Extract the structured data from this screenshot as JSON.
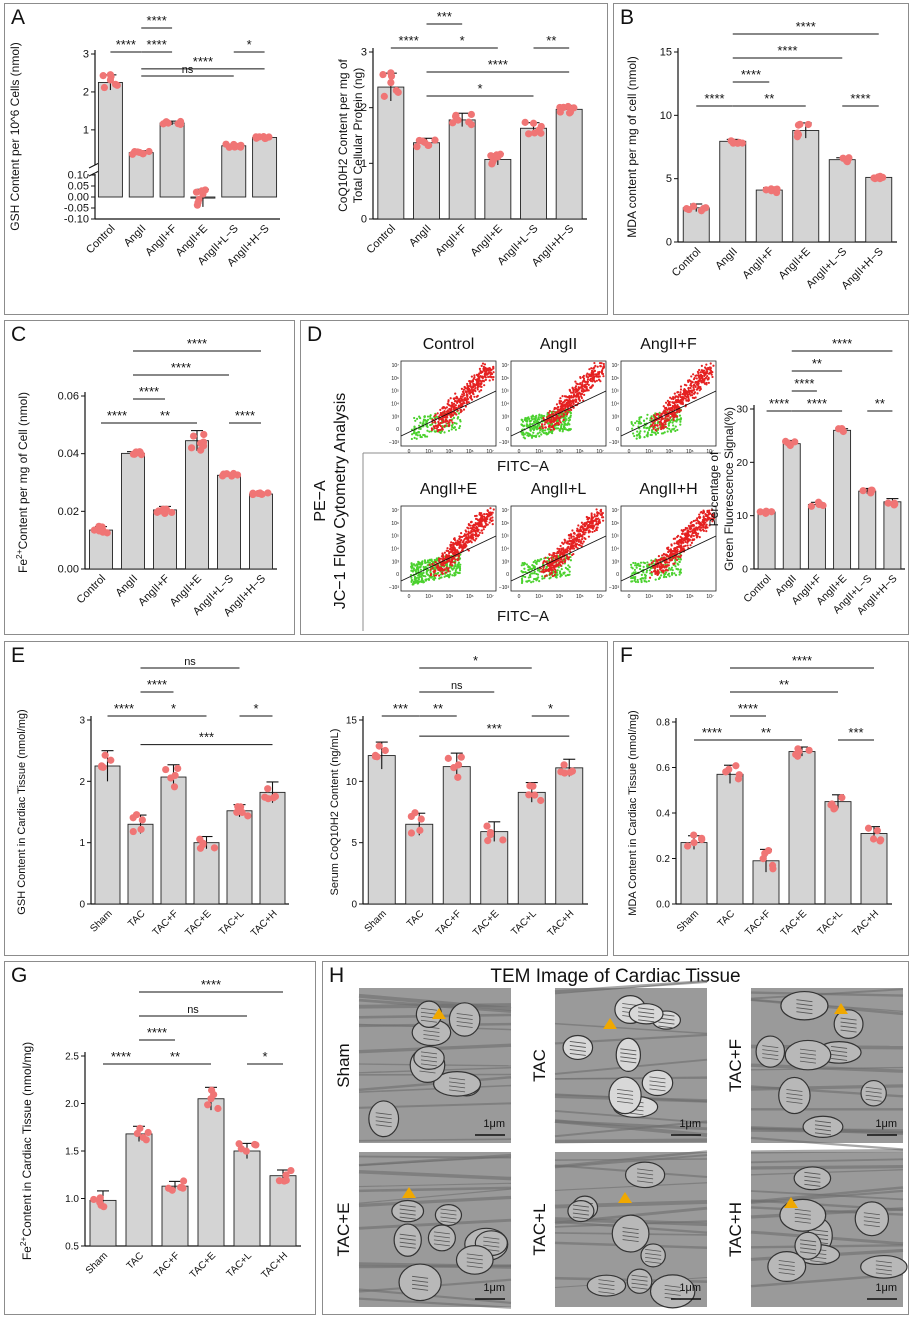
{
  "panel_labels": {
    "A": "A",
    "B": "B",
    "C": "C",
    "D": "D",
    "E": "E",
    "F": "F",
    "G": "G",
    "H": "H"
  },
  "colors": {
    "bar": "#d4d4d4",
    "dot": "#f07575",
    "red_cells": "#e52121",
    "green_cells": "#4bd12e",
    "border": "#8c8c8c"
  },
  "chart_data": [
    {
      "id": "A1",
      "type": "bar",
      "ylabel": "GSH Content per 10^6 Cells (nmol)",
      "categories": [
        "Control",
        "AngII",
        "AngII+F",
        "AngII+E",
        "AngII+L−S",
        "AngII+H−S"
      ],
      "values": [
        2.25,
        0.4,
        1.18,
        -0.005,
        0.58,
        0.8
      ],
      "errors": [
        0.2,
        0.05,
        0.05,
        0.04,
        0.04,
        0.03
      ],
      "axis_break": {
        "lower": [
          -0.1,
          0.1
        ],
        "upper": [
          0.1,
          3
        ]
      },
      "yticks_lower": [
        "-0.10",
        "-0.05",
        "0.00",
        "0.05",
        "0.10"
      ],
      "yticks_upper": [
        "1",
        "2",
        "3"
      ],
      "significance": [
        {
          "from": 0,
          "to": 1,
          "level": 1,
          "label": "****"
        },
        {
          "from": 1,
          "to": 2,
          "level": 2,
          "label": "****"
        },
        {
          "from": 1,
          "to": 2,
          "level": 1,
          "label": "****"
        },
        {
          "from": 1,
          "to": 4,
          "level": 0,
          "label": "ns"
        },
        {
          "from": 1,
          "to": 5,
          "level": -1,
          "label": "****"
        },
        {
          "from": 4,
          "to": 5,
          "level": 1,
          "label": "*"
        }
      ]
    },
    {
      "id": "A2",
      "type": "bar",
      "ylabel": "CoQ10H2 Content per mg of Total Cellular Protein (ng)",
      "ylabel_lines": [
        "CoQ10H2 Content per mg of",
        "Total Cellular Protein (ng)"
      ],
      "categories": [
        "Control",
        "AngII",
        "AngII+F",
        "AngII+E",
        "AngII+L−S",
        "AngII+H−S"
      ],
      "values": [
        2.37,
        1.37,
        1.78,
        1.07,
        1.63,
        1.97
      ],
      "errors": [
        0.25,
        0.08,
        0.12,
        0.1,
        0.1,
        0.07
      ],
      "ylim": [
        0,
        3
      ],
      "yticks": [
        "0",
        "1",
        "2",
        "3"
      ],
      "significance": [
        {
          "from": 0,
          "to": 1,
          "level": 4,
          "label": "****"
        },
        {
          "from": 1,
          "to": 2,
          "level": 5,
          "label": "***"
        },
        {
          "from": 1,
          "to": 3,
          "level": 4,
          "label": "*"
        },
        {
          "from": 1,
          "to": 5,
          "level": 3,
          "label": "****"
        },
        {
          "from": 1,
          "to": 4,
          "level": 2,
          "label": "*"
        },
        {
          "from": 4,
          "to": 5,
          "level": 4,
          "label": "**"
        }
      ]
    },
    {
      "id": "B",
      "type": "bar",
      "ylabel": "MDA content per mg of cell (nmol)",
      "categories": [
        "Control",
        "AngII",
        "AngII+F",
        "AngII+E",
        "AngII+L−S",
        "AngII+H−S"
      ],
      "values": [
        2.7,
        7.95,
        4.1,
        8.8,
        6.5,
        5.1
      ],
      "errors": [
        0.3,
        0.15,
        0.2,
        0.6,
        0.15,
        0.1
      ],
      "ylim": [
        0,
        15
      ],
      "yticks": [
        "0",
        "5",
        "10",
        "15"
      ],
      "significance": [
        {
          "from": 0,
          "to": 1,
          "level": 0,
          "label": "****"
        },
        {
          "from": 1,
          "to": 2,
          "level": 1,
          "label": "****"
        },
        {
          "from": 1,
          "to": 3,
          "level": 0,
          "label": "**"
        },
        {
          "from": 1,
          "to": 4,
          "level": 2,
          "label": "****"
        },
        {
          "from": 1,
          "to": 5,
          "level": 3,
          "label": "****"
        },
        {
          "from": 4,
          "to": 5,
          "level": 0,
          "label": "****"
        }
      ]
    },
    {
      "id": "C",
      "type": "bar",
      "ylabel": "Fe²⁺Content per mg of Cell (nmol)",
      "ylabel_main": "Content per mg of Cell (nmol)",
      "ylabel_fe": "Fe",
      "ylabel_sup": "2+",
      "categories": [
        "Control",
        "AngII",
        "AngII+F",
        "AngII+E",
        "AngII+L−S",
        "AngII+H−S"
      ],
      "values": [
        0.0135,
        0.0401,
        0.0205,
        0.0445,
        0.0325,
        0.026
      ],
      "errors": [
        0.0012,
        0.0006,
        0.0012,
        0.0035,
        0.0006,
        0.0004
      ],
      "ylim": [
        0,
        0.06
      ],
      "yticks": [
        "0.00",
        "0.02",
        "0.04",
        "0.06"
      ],
      "significance": [
        {
          "from": 0,
          "to": 1,
          "level": 0,
          "label": "****"
        },
        {
          "from": 1,
          "to": 2,
          "level": 1,
          "label": "****"
        },
        {
          "from": 1,
          "to": 3,
          "level": 0,
          "label": "**"
        },
        {
          "from": 1,
          "to": 4,
          "level": 2,
          "label": "****"
        },
        {
          "from": 1,
          "to": 5,
          "level": 3,
          "label": "****"
        },
        {
          "from": 4,
          "to": 5,
          "level": 0,
          "label": "****"
        }
      ]
    },
    {
      "id": "D",
      "type": "bar",
      "ylabel": "Percentage of Green Fluorescence Signal(%)",
      "ylabel_lines": [
        "Percentage of",
        "Green Fluorescence Signal(%)"
      ],
      "categories": [
        "Control",
        "AngII",
        "AngII+F",
        "AngII+E",
        "AngII+L−S",
        "AngII+H−S"
      ],
      "values": [
        10.7,
        23.5,
        12.1,
        26.0,
        14.6,
        12.6
      ],
      "errors": [
        0.3,
        0.6,
        0.4,
        0.3,
        0.5,
        0.6
      ],
      "ylim": [
        0,
        30
      ],
      "yticks": [
        "0",
        "10",
        "20",
        "30"
      ],
      "significance": [
        {
          "from": 0,
          "to": 1,
          "level": 0,
          "label": "****"
        },
        {
          "from": 1,
          "to": 2,
          "level": 1,
          "label": "****"
        },
        {
          "from": 1,
          "to": 3,
          "level": 0,
          "label": "****"
        },
        {
          "from": 1,
          "to": 3,
          "level": 2,
          "label": "**"
        },
        {
          "from": 1,
          "to": 5,
          "level": 3,
          "label": "****"
        },
        {
          "from": 4,
          "to": 5,
          "level": 0,
          "label": "**"
        }
      ]
    },
    {
      "id": "E1",
      "type": "bar",
      "ylabel": "GSH Content in Cardiac Tissue (nmol/mg)",
      "categories": [
        "Sham",
        "TAC",
        "TAC+F",
        "TAC+E",
        "TAC+L",
        "TAC+H"
      ],
      "values": [
        2.25,
        1.3,
        2.07,
        1.0,
        1.52,
        1.82
      ],
      "errors": [
        0.25,
        0.15,
        0.2,
        0.1,
        0.1,
        0.17
      ],
      "ylim": [
        0,
        3
      ],
      "yticks": [
        "0",
        "1",
        "2",
        "3"
      ],
      "significance": [
        {
          "from": 0,
          "to": 1,
          "level": 0,
          "label": "****"
        },
        {
          "from": 1,
          "to": 2,
          "level": 1,
          "label": "****"
        },
        {
          "from": 1,
          "to": 3,
          "level": 0,
          "label": "*"
        },
        {
          "from": 1,
          "to": 4,
          "level": 2,
          "label": "ns"
        },
        {
          "from": 1,
          "to": 5,
          "level": -1,
          "label": "***"
        },
        {
          "from": 4,
          "to": 5,
          "level": 0,
          "label": "*"
        }
      ]
    },
    {
      "id": "E2",
      "type": "bar",
      "ylabel": "Serum CoQ10H2 Content (ng/mL)",
      "categories": [
        "Sham",
        "TAC",
        "TAC+F",
        "TAC+E",
        "TAC+L",
        "TAC+H"
      ],
      "values": [
        12.1,
        6.5,
        11.2,
        5.9,
        9.1,
        11.1
      ],
      "errors": [
        1.1,
        0.9,
        1.1,
        0.8,
        0.8,
        0.7
      ],
      "ylim": [
        0,
        15
      ],
      "yticks": [
        "0",
        "5",
        "10",
        "15"
      ],
      "significance": [
        {
          "from": 0,
          "to": 1,
          "level": 0,
          "label": "***"
        },
        {
          "from": 1,
          "to": 2,
          "level": 0,
          "label": "**"
        },
        {
          "from": 1,
          "to": 3,
          "level": 1,
          "label": "ns"
        },
        {
          "from": 1,
          "to": 4,
          "level": 2,
          "label": "*"
        },
        {
          "from": 1,
          "to": 5,
          "level": -1,
          "label": "***"
        },
        {
          "from": 4,
          "to": 5,
          "level": 0,
          "label": "*"
        }
      ]
    },
    {
      "id": "F",
      "type": "bar",
      "ylabel": "MDA Content in Cardiac Tissue (nmol/mg)",
      "categories": [
        "Sham",
        "TAC",
        "TAC+F",
        "TAC+E",
        "TAC+L",
        "TAC+H"
      ],
      "values": [
        0.27,
        0.57,
        0.19,
        0.67,
        0.45,
        0.31
      ],
      "errors": [
        0.03,
        0.04,
        0.05,
        0.02,
        0.03,
        0.03
      ],
      "ylim": [
        0,
        0.8
      ],
      "yticks": [
        "0.0",
        "0.2",
        "0.4",
        "0.6",
        "0.8"
      ],
      "significance": [
        {
          "from": 0,
          "to": 1,
          "level": 0,
          "label": "****"
        },
        {
          "from": 1,
          "to": 2,
          "level": 1,
          "label": "****"
        },
        {
          "from": 1,
          "to": 3,
          "level": 0,
          "label": "**"
        },
        {
          "from": 1,
          "to": 4,
          "level": 2,
          "label": "**"
        },
        {
          "from": 1,
          "to": 5,
          "level": 3,
          "label": "****"
        },
        {
          "from": 4,
          "to": 5,
          "level": 0,
          "label": "***"
        }
      ]
    },
    {
      "id": "G",
      "type": "bar",
      "ylabel": "Fe²⁺Content in Cardiac Tissue (nmol/mg)",
      "ylabel_main": "Content in Cardiac Tissue (nmol/mg)",
      "ylabel_fe": "Fe",
      "ylabel_sup": "2+",
      "categories": [
        "Sham",
        "TAC",
        "TAC+F",
        "TAC+E",
        "TAC+L",
        "TAC+H"
      ],
      "values": [
        0.98,
        1.68,
        1.13,
        2.05,
        1.5,
        1.24
      ],
      "errors": [
        0.1,
        0.08,
        0.05,
        0.12,
        0.08,
        0.06
      ],
      "ylim": [
        0.5,
        2.5
      ],
      "yticks": [
        "0.5",
        "1.0",
        "1.5",
        "2.0",
        "2.5"
      ],
      "significance": [
        {
          "from": 0,
          "to": 1,
          "level": 0,
          "label": "****"
        },
        {
          "from": 1,
          "to": 2,
          "level": 1,
          "label": "****"
        },
        {
          "from": 1,
          "to": 3,
          "level": 0,
          "label": "**"
        },
        {
          "from": 1,
          "to": 4,
          "level": 2,
          "label": "ns"
        },
        {
          "from": 1,
          "to": 5,
          "level": 3,
          "label": "****"
        },
        {
          "from": 4,
          "to": 5,
          "level": 0,
          "label": "*"
        }
      ]
    }
  ],
  "flow": {
    "side_title": "JC−1 Flow Cytometry Analysis",
    "y_axis": "PE−A",
    "x_axis": "FITC−A",
    "x_axis_bottom": "FITC−A",
    "plots": [
      "Control",
      "AngII",
      "AngII+F",
      "AngII+E",
      "AngII+L",
      "AngII+H"
    ],
    "y_ticks": [
      "10⁷",
      "10⁶",
      "10⁵",
      "10⁴",
      "10³",
      "0",
      "−10³"
    ],
    "x_ticks": [
      "0",
      "10⁴",
      "10⁵",
      "10⁶",
      "10⁷"
    ]
  },
  "tem": {
    "title": "TEM Image of Cardiac Tissue",
    "images": [
      "Sham",
      "TAC",
      "TAC+F",
      "TAC+E",
      "TAC+L",
      "TAC+H"
    ],
    "scale": "1μm"
  }
}
